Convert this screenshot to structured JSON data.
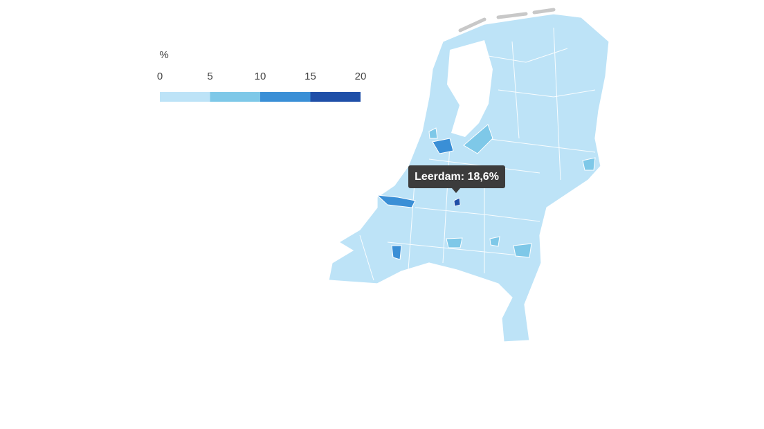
{
  "legend": {
    "title": "%",
    "ticks": [
      0,
      5,
      10,
      15,
      20
    ],
    "colors": [
      "#bde3f7",
      "#7ec8e8",
      "#3a8fd6",
      "#1f4fa8"
    ]
  },
  "highlight": {
    "label": "Leerdam: 18,6%",
    "value": 18.6
  }
}
